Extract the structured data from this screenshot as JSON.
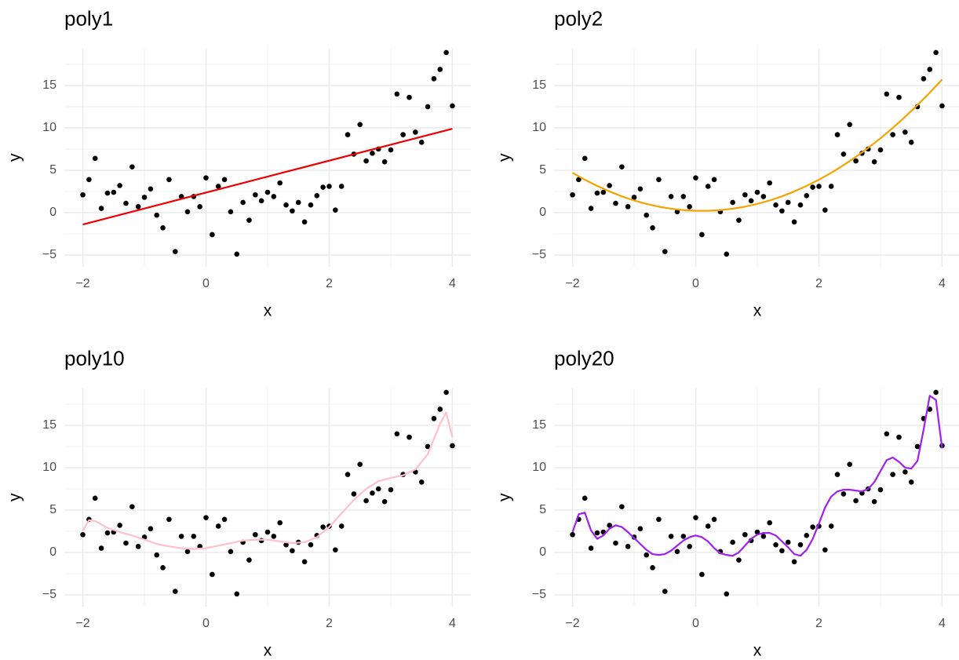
{
  "chart_data": [
    {
      "type": "scatter",
      "title": "poly1",
      "x_label": "x",
      "y_label": "y",
      "point_color": "#000000",
      "x": [
        -2,
        -1.9,
        -1.8,
        -1.7,
        -1.6,
        -1.5,
        -1.4,
        -1.3,
        -1.2,
        -1.1,
        -1,
        -0.9,
        -0.8,
        -0.7,
        -0.6,
        -0.5,
        -0.4,
        -0.3,
        -0.2,
        -0.1,
        0,
        0.1,
        0.2,
        0.3,
        0.4,
        0.5,
        0.6,
        0.7,
        0.8,
        0.9,
        1,
        1.1,
        1.2,
        1.3,
        1.4,
        1.5,
        1.6,
        1.7,
        1.8,
        1.9,
        2,
        2.1,
        2.2,
        2.3,
        2.4,
        2.5,
        2.6,
        2.7,
        2.8,
        2.9,
        3,
        3.1,
        3.2,
        3.3,
        3.4,
        3.5,
        3.6,
        3.7,
        3.8,
        3.9,
        4
      ],
      "values": [
        2.1,
        3.9,
        6.4,
        0.5,
        2.3,
        2.4,
        3.2,
        1.1,
        5.4,
        0.7,
        1.8,
        2.8,
        -0.3,
        -1.8,
        3.9,
        -4.6,
        1.9,
        0.1,
        1.9,
        0.7,
        4.1,
        -2.6,
        3.1,
        3.9,
        0.1,
        -4.9,
        1.2,
        -0.9,
        2.1,
        1.4,
        2.4,
        1.9,
        3.5,
        0.9,
        0.2,
        1.2,
        -1.1,
        0.9,
        2,
        3,
        3.1,
        0.3,
        3.1,
        9.2,
        6.9,
        10.4,
        6.1,
        7,
        7.5,
        6,
        7.4,
        14,
        9.2,
        13.6,
        9.5,
        8.3,
        12.5,
        15.8,
        16.9,
        18.9,
        12.6
      ],
      "fit": {
        "type": "line",
        "color": "#ee0000",
        "x": [
          -2,
          4
        ],
        "values": [
          -1.4,
          9.9
        ]
      },
      "xlim": [
        -2.3,
        4.3
      ],
      "ylim": [
        -6.4,
        19.4
      ],
      "xticks": [
        {
          "value": -2,
          "label": "−2"
        },
        0,
        2,
        4
      ],
      "yticks": [
        {
          "value": -5,
          "label": "−5"
        },
        0,
        5,
        10,
        15
      ],
      "grid": true,
      "minor_grid": true
    },
    {
      "type": "scatter",
      "title": "poly2",
      "x_label": "x",
      "y_label": "y",
      "point_color": "#000000",
      "x": [
        -2,
        -1.9,
        -1.8,
        -1.7,
        -1.6,
        -1.5,
        -1.4,
        -1.3,
        -1.2,
        -1.1,
        -1,
        -0.9,
        -0.8,
        -0.7,
        -0.6,
        -0.5,
        -0.4,
        -0.3,
        -0.2,
        -0.1,
        0,
        0.1,
        0.2,
        0.3,
        0.4,
        0.5,
        0.6,
        0.7,
        0.8,
        0.9,
        1,
        1.1,
        1.2,
        1.3,
        1.4,
        1.5,
        1.6,
        1.7,
        1.8,
        1.9,
        2,
        2.1,
        2.2,
        2.3,
        2.4,
        2.5,
        2.6,
        2.7,
        2.8,
        2.9,
        3,
        3.1,
        3.2,
        3.3,
        3.4,
        3.5,
        3.6,
        3.7,
        3.8,
        3.9,
        4
      ],
      "values": [
        2.1,
        3.9,
        6.4,
        0.5,
        2.3,
        2.4,
        3.2,
        1.1,
        5.4,
        0.7,
        1.8,
        2.8,
        -0.3,
        -1.8,
        3.9,
        -4.6,
        1.9,
        0.1,
        1.9,
        0.7,
        4.1,
        -2.6,
        3.1,
        3.9,
        0.1,
        -4.9,
        1.2,
        -0.9,
        2.1,
        1.4,
        2.4,
        1.9,
        3.5,
        0.9,
        0.2,
        1.2,
        -1.1,
        0.9,
        2,
        3,
        3.1,
        0.3,
        3.1,
        9.2,
        6.9,
        10.4,
        6.1,
        7,
        7.5,
        6,
        7.4,
        14,
        9.2,
        13.6,
        9.5,
        8.3,
        12.5,
        15.8,
        16.9,
        18.9,
        12.6
      ],
      "fit": {
        "type": "line",
        "color": "#f5a300",
        "x": [
          -2,
          -1.8,
          -1.6,
          -1.4,
          -1.2,
          -1,
          -0.8,
          -0.6,
          -0.4,
          -0.2,
          0,
          0.2,
          0.4,
          0.6,
          0.8,
          1,
          1.2,
          1.4,
          1.6,
          1.8,
          2,
          2.2,
          2.4,
          2.6,
          2.8,
          3,
          3.2,
          3.4,
          3.6,
          3.8,
          4
        ],
        "values": [
          4.7,
          3.88,
          3.15,
          2.5,
          1.92,
          1.43,
          1.03,
          0.7,
          0.46,
          0.29,
          0.21,
          0.21,
          0.29,
          0.46,
          0.7,
          1.03,
          1.43,
          1.92,
          2.5,
          3.15,
          3.88,
          4.7,
          5.6,
          6.58,
          7.64,
          8.78,
          10,
          11.31,
          12.7,
          14.16,
          15.71
        ]
      },
      "xlim": [
        -2.3,
        4.3
      ],
      "ylim": [
        -6.4,
        19.4
      ],
      "xticks": [
        {
          "value": -2,
          "label": "−2"
        },
        0,
        2,
        4
      ],
      "yticks": [
        {
          "value": -5,
          "label": "−5"
        },
        0,
        5,
        10,
        15
      ],
      "grid": true,
      "minor_grid": true
    },
    {
      "type": "scatter",
      "title": "poly10",
      "x_label": "x",
      "y_label": "y",
      "point_color": "#000000",
      "x": [
        -2,
        -1.9,
        -1.8,
        -1.7,
        -1.6,
        -1.5,
        -1.4,
        -1.3,
        -1.2,
        -1.1,
        -1,
        -0.9,
        -0.8,
        -0.7,
        -0.6,
        -0.5,
        -0.4,
        -0.3,
        -0.2,
        -0.1,
        0,
        0.1,
        0.2,
        0.3,
        0.4,
        0.5,
        0.6,
        0.7,
        0.8,
        0.9,
        1,
        1.1,
        1.2,
        1.3,
        1.4,
        1.5,
        1.6,
        1.7,
        1.8,
        1.9,
        2,
        2.1,
        2.2,
        2.3,
        2.4,
        2.5,
        2.6,
        2.7,
        2.8,
        2.9,
        3,
        3.1,
        3.2,
        3.3,
        3.4,
        3.5,
        3.6,
        3.7,
        3.8,
        3.9,
        4
      ],
      "values": [
        2.1,
        3.9,
        6.4,
        0.5,
        2.3,
        2.4,
        3.2,
        1.1,
        5.4,
        0.7,
        1.8,
        2.8,
        -0.3,
        -1.8,
        3.9,
        -4.6,
        1.9,
        0.1,
        1.9,
        0.7,
        4.1,
        -2.6,
        3.1,
        3.9,
        0.1,
        -4.9,
        1.2,
        -0.9,
        2.1,
        1.4,
        2.4,
        1.9,
        3.5,
        0.9,
        0.2,
        1.2,
        -1.1,
        0.9,
        2,
        3,
        3.1,
        0.3,
        3.1,
        9.2,
        6.9,
        10.4,
        6.1,
        7,
        7.5,
        6,
        7.4,
        14,
        9.2,
        13.6,
        9.5,
        8.3,
        12.5,
        15.8,
        16.9,
        18.9,
        12.6
      ],
      "fit": {
        "type": "line",
        "color": "#ffc0cb",
        "x": [
          -2,
          -1.9,
          -1.8,
          -1.6,
          -1.4,
          -1.2,
          -1,
          -0.8,
          -0.6,
          -0.4,
          -0.2,
          0,
          0.2,
          0.4,
          0.6,
          0.8,
          1,
          1.2,
          1.4,
          1.6,
          1.8,
          2,
          2.2,
          2.4,
          2.6,
          2.8,
          3,
          3.2,
          3.4,
          3.6,
          3.8,
          3.9,
          4
        ],
        "values": [
          2.6,
          3.8,
          3.7,
          2.9,
          2.4,
          2,
          1.5,
          1,
          0.7,
          0.5,
          0.4,
          0.5,
          0.8,
          1.1,
          1.4,
          1.5,
          1.5,
          1.3,
          1.1,
          1.2,
          1.8,
          3,
          4.6,
          6.2,
          7.5,
          8.4,
          8.8,
          9.1,
          9.8,
          11.6,
          15.2,
          16.5,
          13.6
        ]
      },
      "xlim": [
        -2.3,
        4.3
      ],
      "ylim": [
        -6.4,
        19.4
      ],
      "xticks": [
        {
          "value": -2,
          "label": "−2"
        },
        0,
        2,
        4
      ],
      "yticks": [
        {
          "value": -5,
          "label": "−5"
        },
        0,
        5,
        10,
        15
      ],
      "grid": true,
      "minor_grid": true
    },
    {
      "type": "scatter",
      "title": "poly20",
      "x_label": "x",
      "y_label": "y",
      "point_color": "#000000",
      "x": [
        -2,
        -1.9,
        -1.8,
        -1.7,
        -1.6,
        -1.5,
        -1.4,
        -1.3,
        -1.2,
        -1.1,
        -1,
        -0.9,
        -0.8,
        -0.7,
        -0.6,
        -0.5,
        -0.4,
        -0.3,
        -0.2,
        -0.1,
        0,
        0.1,
        0.2,
        0.3,
        0.4,
        0.5,
        0.6,
        0.7,
        0.8,
        0.9,
        1,
        1.1,
        1.2,
        1.3,
        1.4,
        1.5,
        1.6,
        1.7,
        1.8,
        1.9,
        2,
        2.1,
        2.2,
        2.3,
        2.4,
        2.5,
        2.6,
        2.7,
        2.8,
        2.9,
        3,
        3.1,
        3.2,
        3.3,
        3.4,
        3.5,
        3.6,
        3.7,
        3.8,
        3.9,
        4
      ],
      "values": [
        2.1,
        3.9,
        6.4,
        0.5,
        2.3,
        2.4,
        3.2,
        1.1,
        5.4,
        0.7,
        1.8,
        2.8,
        -0.3,
        -1.8,
        3.9,
        -4.6,
        1.9,
        0.1,
        1.9,
        0.7,
        4.1,
        -2.6,
        3.1,
        3.9,
        0.1,
        -4.9,
        1.2,
        -0.9,
        2.1,
        1.4,
        2.4,
        1.9,
        3.5,
        0.9,
        0.2,
        1.2,
        -1.1,
        0.9,
        2,
        3,
        3.1,
        0.3,
        3.1,
        9.2,
        6.9,
        10.4,
        6.1,
        7,
        7.5,
        6,
        7.4,
        14,
        9.2,
        13.6,
        9.5,
        8.3,
        12.5,
        15.8,
        16.9,
        18.9,
        12.6
      ],
      "fit": {
        "type": "line",
        "color": "#a020f0",
        "x": [
          -2,
          -1.9,
          -1.8,
          -1.7,
          -1.6,
          -1.5,
          -1.4,
          -1.3,
          -1.2,
          -1.1,
          -1,
          -0.9,
          -0.8,
          -0.7,
          -0.6,
          -0.5,
          -0.4,
          -0.3,
          -0.2,
          -0.1,
          0,
          0.1,
          0.2,
          0.3,
          0.4,
          0.5,
          0.6,
          0.7,
          0.8,
          0.9,
          1,
          1.1,
          1.2,
          1.3,
          1.4,
          1.5,
          1.6,
          1.7,
          1.8,
          1.9,
          2,
          2.1,
          2.2,
          2.3,
          2.4,
          2.5,
          2.6,
          2.7,
          2.8,
          2.9,
          3,
          3.1,
          3.2,
          3.3,
          3.4,
          3.5,
          3.6,
          3.7,
          3.8,
          3.9,
          4
        ],
        "values": [
          2.4,
          4.5,
          4.7,
          2.6,
          1.6,
          2,
          2.8,
          3.2,
          3,
          2.4,
          1.7,
          1,
          0.3,
          -0.2,
          -0.3,
          -0.2,
          0.2,
          0.8,
          1.4,
          1.8,
          2,
          1.8,
          1.3,
          0.5,
          -0.1,
          -0.3,
          -0.4,
          0,
          0.8,
          1.6,
          2.1,
          2.3,
          2.3,
          2,
          1.3,
          0.6,
          -0.2,
          -0.4,
          0.3,
          1.6,
          3.4,
          5.3,
          6.6,
          7.2,
          7.4,
          7.4,
          7.3,
          7.2,
          7.5,
          8.3,
          9.6,
          10.9,
          11.2,
          10.7,
          10,
          9.9,
          10.8,
          14.5,
          18.5,
          18,
          12.3
        ]
      },
      "xlim": [
        -2.3,
        4.3
      ],
      "ylim": [
        -6.4,
        19.4
      ],
      "xticks": [
        {
          "value": -2,
          "label": "−2"
        },
        0,
        2,
        4
      ],
      "yticks": [
        {
          "value": -5,
          "label": "−5"
        },
        0,
        5,
        10,
        15
      ],
      "grid": true,
      "minor_grid": true
    }
  ]
}
